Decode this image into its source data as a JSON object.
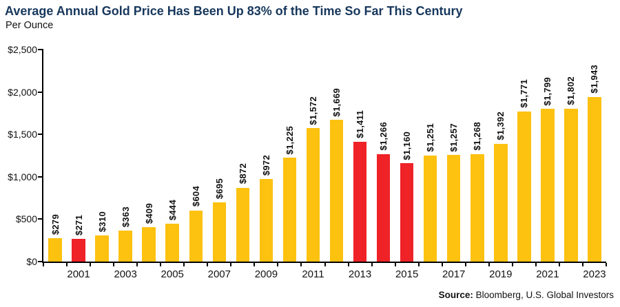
{
  "title": "Average Annual Gold Price Has Been Up 83% of the Time So Far This Century",
  "subtitle": "Per Ounce",
  "source": {
    "label": "Source:",
    "text": " Bloomberg, U.S. Global Investors"
  },
  "colors": {
    "up_bar": "#FDC110",
    "down_bar": "#EE2227",
    "title_text": "#17375C",
    "axis": "#000000",
    "label_text": "#121212"
  },
  "chart_data": {
    "type": "bar",
    "title": "Average Annual Gold Price Has Been Up 83% of the Time So Far This Century",
    "subtitle": "Per Ounce",
    "xlabel": "",
    "ylabel": "Per Ounce (USD)",
    "categories": [
      2000,
      2001,
      2002,
      2003,
      2004,
      2005,
      2006,
      2007,
      2008,
      2009,
      2010,
      2011,
      2012,
      2013,
      2014,
      2015,
      2016,
      2017,
      2018,
      2019,
      2020,
      2021,
      2022,
      2023
    ],
    "values": [
      279,
      271,
      310,
      363,
      409,
      444,
      604,
      695,
      872,
      972,
      1225,
      1572,
      1669,
      1411,
      1266,
      1160,
      1251,
      1257,
      1268,
      1392,
      1771,
      1799,
      1802,
      1943
    ],
    "value_labels": [
      "$279",
      "$271",
      "$310",
      "$363",
      "$409",
      "$444",
      "$604",
      "$695",
      "$872",
      "$972",
      "$1,225",
      "$1,572",
      "$1,669",
      "$1,411",
      "$1,266",
      "$1,160",
      "$1,251",
      "$1,257",
      "$1,268",
      "$1,392",
      "$1,771",
      "$1,799",
      "$1,802",
      "$1,943"
    ],
    "down_years": [
      2001,
      2013,
      2014,
      2015
    ],
    "x_tick_labels": [
      "2001",
      "2003",
      "2005",
      "2007",
      "2009",
      "2011",
      "2013",
      "2015",
      "2017",
      "2019",
      "2021",
      "2023"
    ],
    "y_ticks": [
      0,
      500,
      1000,
      1500,
      2000,
      2500
    ],
    "y_tick_labels": [
      "$0",
      "$500",
      "$1,000",
      "$1,500",
      "$2,000",
      "$2,500"
    ],
    "ylim": [
      0,
      2500
    ],
    "grid": false,
    "legend": "none",
    "bar_label_rotation_deg": 90
  }
}
